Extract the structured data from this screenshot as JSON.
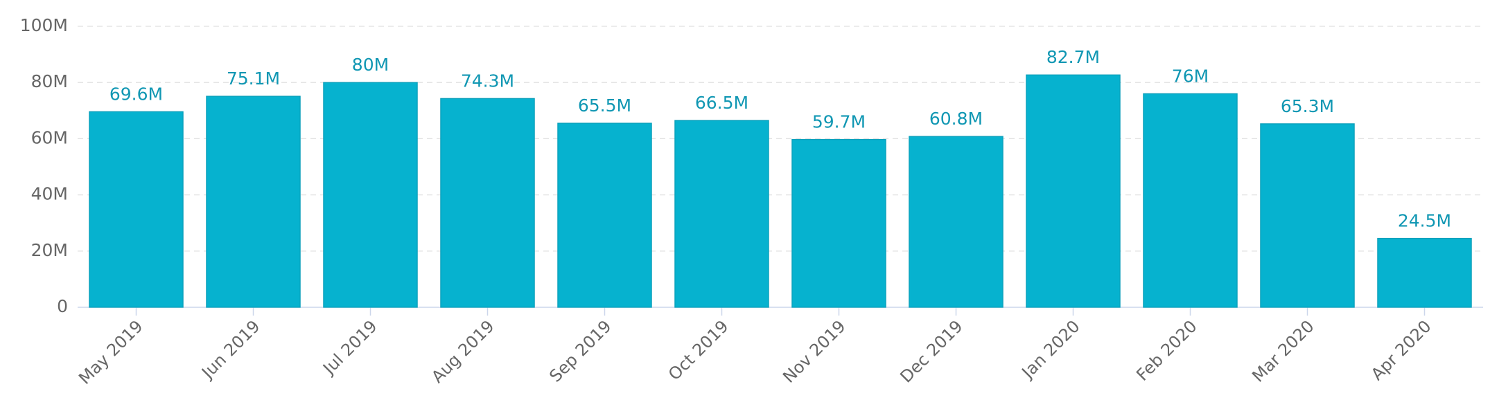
{
  "chart_data": {
    "type": "bar",
    "categories": [
      "May 2019",
      "Jun 2019",
      "Jul 2019",
      "Aug 2019",
      "Sep 2019",
      "Oct 2019",
      "Nov 2019",
      "Dec 2019",
      "Jan 2020",
      "Feb 2020",
      "Mar 2020",
      "Apr 2020"
    ],
    "values": [
      69600000,
      75100000,
      80000000,
      74300000,
      65500000,
      66500000,
      59700000,
      60800000,
      82700000,
      76000000,
      65300000,
      24500000
    ],
    "value_labels": [
      "69.6M",
      "75.1M",
      "80M",
      "74.3M",
      "65.5M",
      "66.5M",
      "59.7M",
      "60.8M",
      "82.7M",
      "76M",
      "65.3M",
      "24.5M"
    ],
    "color": "#06b2cf",
    "ylim": [
      0,
      100000000
    ],
    "yticks": [
      0,
      {
        "value": 20000000,
        "label": "20M"
      },
      {
        "value": 40000000,
        "label": "40M"
      },
      {
        "value": 60000000,
        "label": "60M"
      },
      {
        "value": 80000000,
        "label": "80M"
      },
      {
        "value": 100000000,
        "label": "100M"
      }
    ],
    "grid": true
  }
}
